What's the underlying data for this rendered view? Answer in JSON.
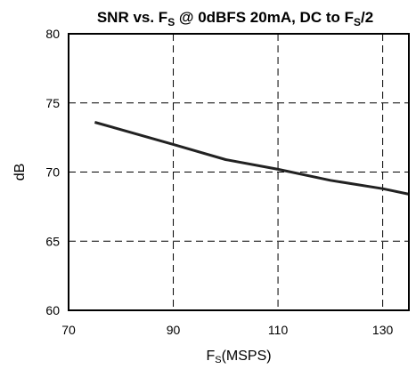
{
  "chart_data": {
    "type": "line",
    "title": {
      "main": "SNR vs. F",
      "sub1": "S",
      "mid": " @ 0dBFS 20mA, DC to F",
      "sub2": "S",
      "end": "/2"
    },
    "xlabel": {
      "main": "F",
      "sub": "S",
      "rest": "(MSPS)"
    },
    "ylabel": "dB",
    "xlim": [
      70,
      135
    ],
    "ylim": [
      60,
      80
    ],
    "x_ticks": [
      70,
      90,
      110,
      130
    ],
    "y_ticks": [
      60,
      65,
      70,
      75,
      80
    ],
    "x_tick_labels": [
      "70",
      "90",
      "110",
      "130"
    ],
    "y_tick_labels": [
      "60",
      "65",
      "70",
      "75",
      "80"
    ],
    "grid": true,
    "series": [
      {
        "x": [
          75,
          90,
          100,
          110,
          120,
          130,
          135
        ],
        "y": [
          73.6,
          72.0,
          70.9,
          70.2,
          69.4,
          68.8,
          68.4
        ]
      }
    ],
    "colors": {
      "line": "#222222",
      "grid": "#000000",
      "frame": "#000000"
    }
  }
}
